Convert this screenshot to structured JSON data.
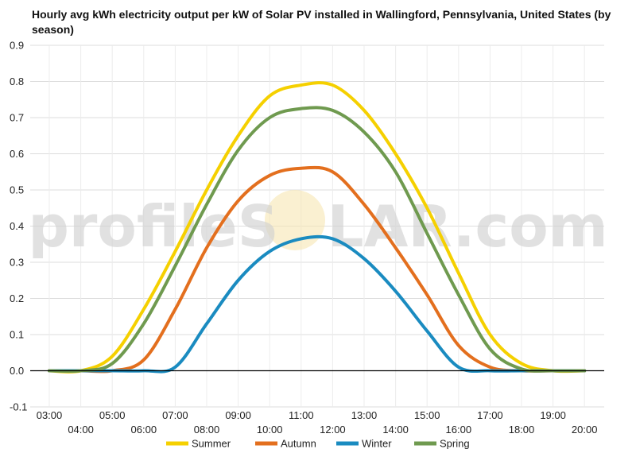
{
  "chart_data": {
    "type": "line",
    "title": "Hourly avg kWh electricity output per kW of Solar PV installed in Wallingford, Pennsylvania, United States (by season)",
    "watermark": {
      "left": "profileS",
      "sun": "O",
      "right": "LAR.com"
    },
    "xlabel": "",
    "ylabel": "",
    "ylim": [
      -0.1,
      0.9
    ],
    "y_ticks": [
      "-0.1",
      "0.0",
      "0.1",
      "0.2",
      "0.3",
      "0.4",
      "0.5",
      "0.6",
      "0.7",
      "0.8",
      "0.9"
    ],
    "x": [
      "03:00",
      "04:00",
      "05:00",
      "06:00",
      "07:00",
      "08:00",
      "09:00",
      "10:00",
      "11:00",
      "12:00",
      "13:00",
      "14:00",
      "15:00",
      "16:00",
      "17:00",
      "18:00",
      "19:00",
      "20:00"
    ],
    "grid": true,
    "legend_position": "bottom",
    "series": [
      {
        "name": "Summer",
        "color": "#f5d000",
        "values": [
          0.0,
          0.0,
          0.04,
          0.17,
          0.33,
          0.5,
          0.65,
          0.76,
          0.79,
          0.79,
          0.72,
          0.6,
          0.45,
          0.27,
          0.1,
          0.02,
          0.0,
          0.0
        ]
      },
      {
        "name": "Autumn",
        "color": "#e36f1e",
        "values": [
          0.0,
          0.0,
          0.0,
          0.03,
          0.17,
          0.34,
          0.47,
          0.54,
          0.56,
          0.55,
          0.46,
          0.34,
          0.21,
          0.07,
          0.01,
          0.0,
          0.0,
          0.0
        ]
      },
      {
        "name": "Winter",
        "color": "#1a8bc0",
        "values": [
          0.0,
          0.0,
          0.0,
          0.0,
          0.01,
          0.13,
          0.25,
          0.33,
          0.365,
          0.365,
          0.31,
          0.22,
          0.11,
          0.01,
          0.0,
          0.0,
          0.0,
          0.0
        ]
      },
      {
        "name": "Spring",
        "color": "#6f9a4f",
        "values": [
          0.0,
          0.0,
          0.02,
          0.13,
          0.29,
          0.46,
          0.61,
          0.7,
          0.725,
          0.72,
          0.66,
          0.55,
          0.38,
          0.21,
          0.06,
          0.005,
          0.0,
          0.0
        ]
      }
    ]
  }
}
